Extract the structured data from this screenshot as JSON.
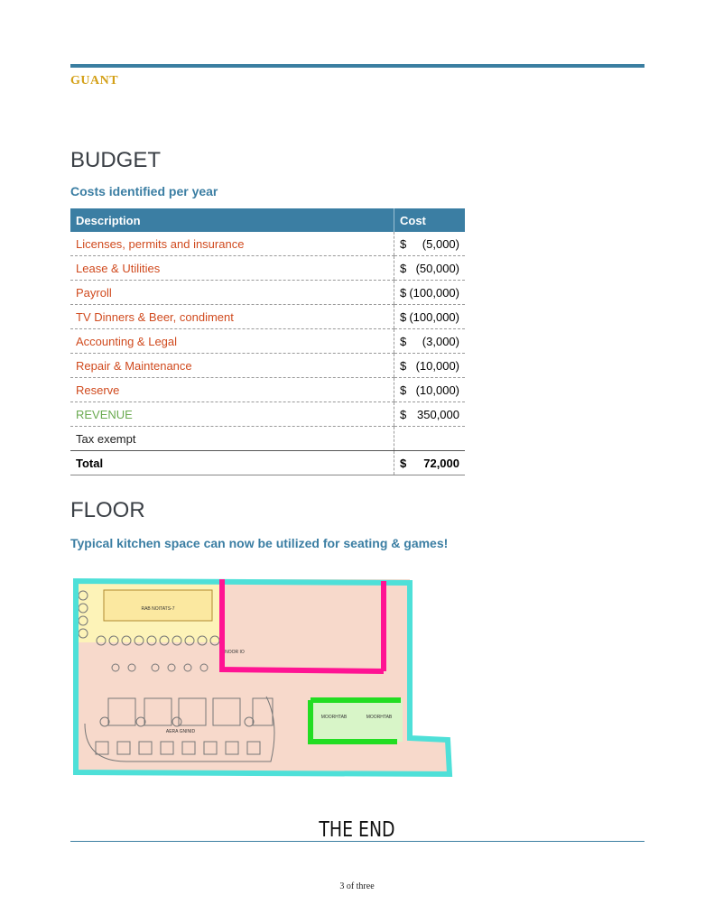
{
  "header": {
    "brand": "GUANT"
  },
  "budget": {
    "title": "BUDGET",
    "subtitle": "Costs identified per year",
    "table": {
      "columns": [
        "Description",
        "Cost"
      ],
      "rows": [
        [
          "Licenses, permits and insurance",
          "$",
          "(5,000)"
        ],
        [
          "Lease & Utilities",
          "$",
          "(50,000)"
        ],
        [
          "Payroll",
          "$",
          "(100,000)"
        ],
        [
          "TV Dinners & Beer, condiment",
          "$",
          "(100,000)"
        ],
        [
          "Accounting & Legal",
          "$",
          "(3,000)"
        ],
        [
          "Repair & Maintenance",
          "$",
          "(10,000)"
        ],
        [
          "Reserve",
          "$",
          "(10,000)"
        ],
        [
          "REVENUE",
          "$",
          "350,000"
        ],
        [
          "Tax exempt",
          "",
          ""
        ]
      ],
      "total": [
        "Total",
        "$",
        "72,000"
      ]
    }
  },
  "floor": {
    "title": "FLOOR",
    "subtitle": "Typical kitchen space can now be utilized for seating & games!",
    "plan_labels": [
      "RAB NOITATS-7",
      "NOOR IO",
      "MOORHTAB",
      "MOORHTAB",
      "AERA GNINID"
    ]
  },
  "footer": {
    "end": "THE END",
    "page": "3 of three"
  }
}
